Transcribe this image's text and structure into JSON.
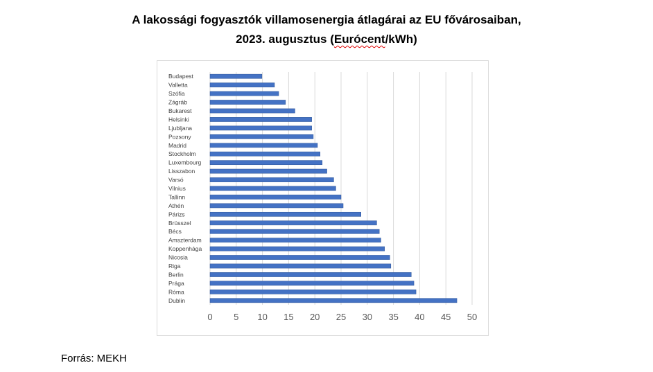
{
  "header": {
    "title_line1": "A lakossági fogyasztók villamosenergia átlagárai az EU fővárosaiban,",
    "title_line2_prefix": "2023. augusztus (",
    "title_line2_unit": "Eurócent",
    "title_line2_suffix": "/kWh)"
  },
  "footer": {
    "source": "Forrás: MEKH"
  },
  "colors": {
    "bar": "#4472c4",
    "bar_dark": "#2f5597",
    "grid": "#d9d9d9",
    "tick_text": "#595959"
  },
  "chart_data": {
    "type": "bar",
    "orientation": "horizontal",
    "categories": [
      "Budapest",
      "Valletta",
      "Szófia",
      "Zágráb",
      "Bukarest",
      "Helsinki",
      "Ljubljana",
      "Pozsony",
      "Madrid",
      "Stockholm",
      "Luxembourg",
      "Lisszabon",
      "Varsó",
      "Vilnius",
      "Tallinn",
      "Athén",
      "Párizs",
      "Brüsszel",
      "Bécs",
      "Amszterdam",
      "Koppenhága",
      "Nicosia",
      "Riga",
      "Berlin",
      "Prága",
      "Róma",
      "Dublin"
    ],
    "values": [
      9.9,
      12.3,
      13.1,
      14.4,
      16.2,
      19.4,
      19.4,
      19.7,
      20.5,
      21.0,
      21.4,
      22.3,
      23.6,
      24.0,
      25.0,
      25.4,
      28.8,
      31.8,
      32.3,
      32.6,
      33.3,
      34.3,
      34.5,
      38.4,
      38.9,
      39.3,
      47.1
    ],
    "xlim": [
      0,
      50
    ],
    "xticks": [
      "0",
      "5",
      "10",
      "15",
      "20",
      "25",
      "30",
      "35",
      "40",
      "45",
      "50"
    ],
    "grid": true,
    "legend": "none"
  }
}
